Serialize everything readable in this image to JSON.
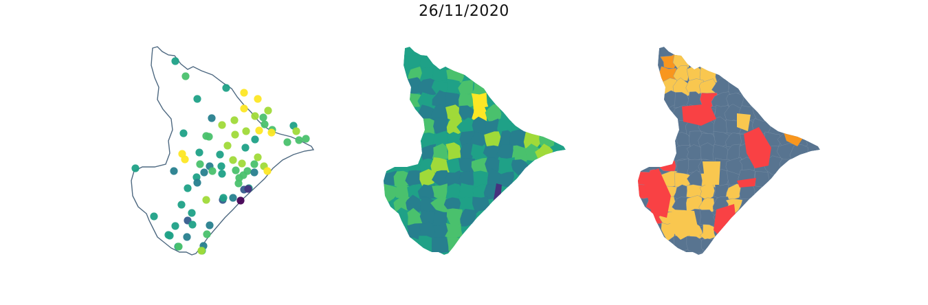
{
  "title": "26/11/2020",
  "colors": {
    "outline": "#4d6880",
    "viridis": [
      "#440154",
      "#46327e",
      "#365c8d",
      "#277f8e",
      "#1fa187",
      "#4ac16d",
      "#a0da39",
      "#fde725"
    ],
    "classes": [
      "#587490",
      "#f9c74f",
      "#f8961e",
      "#f94144"
    ]
  },
  "panels": [
    {
      "id": "points",
      "kind": "point-map"
    },
    {
      "id": "choropleth",
      "kind": "continuous-choropleth"
    },
    {
      "id": "classes",
      "kind": "categorical-choropleth"
    }
  ]
}
